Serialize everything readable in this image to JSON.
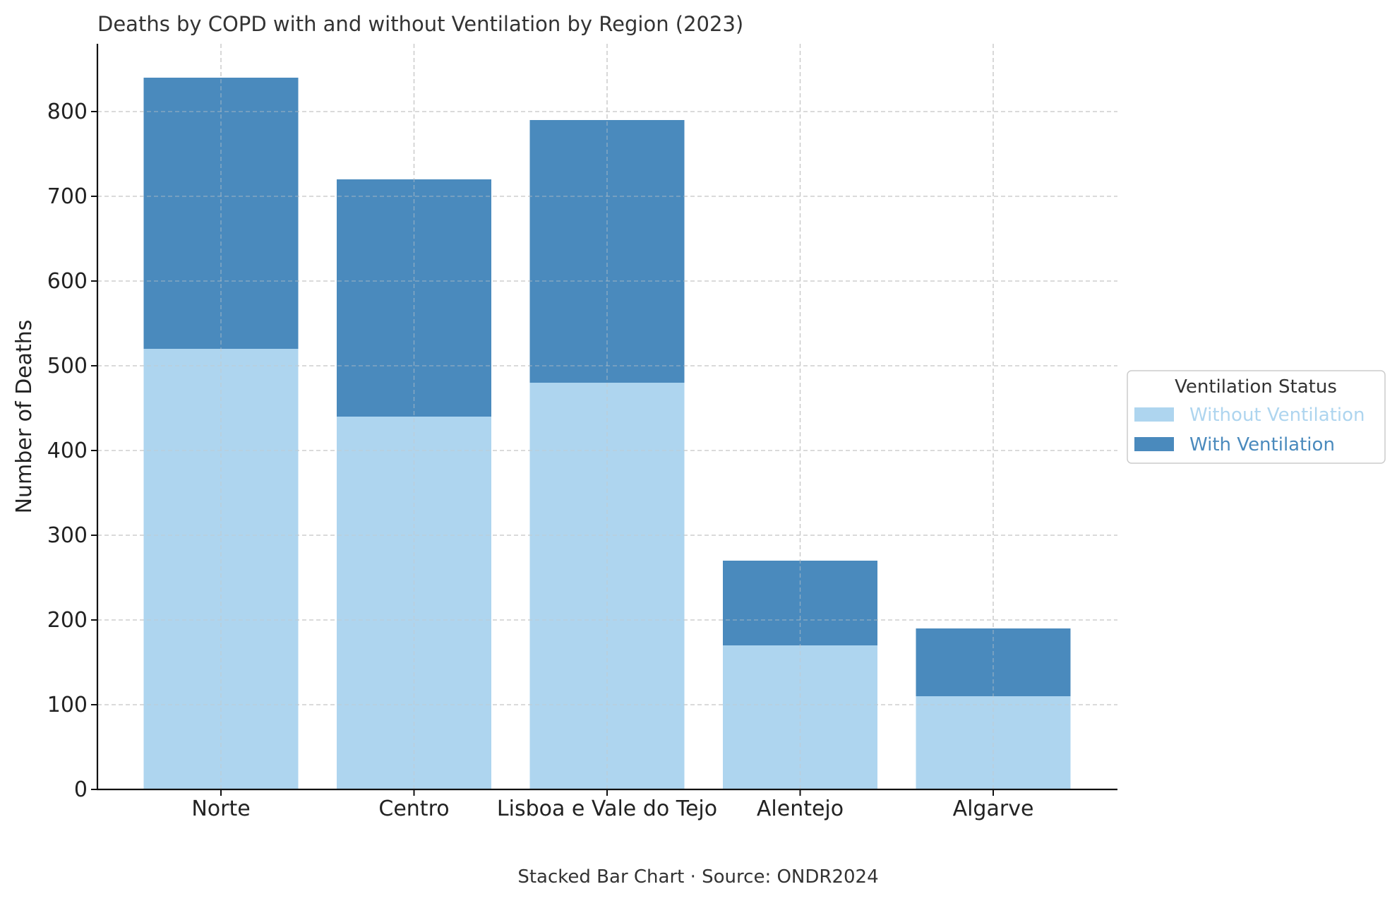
{
  "chart_data": {
    "type": "bar",
    "stacked": true,
    "title": "Deaths by COPD with and without Ventilation by Region (2023)",
    "xlabel": "",
    "ylabel": "Number of Deaths",
    "caption": "Stacked Bar Chart · Source: ONDR2024",
    "categories": [
      "Norte",
      "Centro",
      "Lisboa e Vale do Tejo",
      "Alentejo",
      "Algarve"
    ],
    "series": [
      {
        "name": "Without Ventilation",
        "values": [
          520,
          440,
          480,
          170,
          110
        ],
        "color": "#aed5ef"
      },
      {
        "name": "With Ventilation",
        "values": [
          320,
          280,
          310,
          100,
          80
        ],
        "color": "#4a8abd"
      }
    ],
    "ylim": [
      0,
      880
    ],
    "yticks": [
      0,
      100,
      200,
      300,
      400,
      500,
      600,
      700,
      800
    ],
    "grid": true,
    "legend": {
      "title": "Ventilation Status",
      "placement": "right"
    }
  }
}
